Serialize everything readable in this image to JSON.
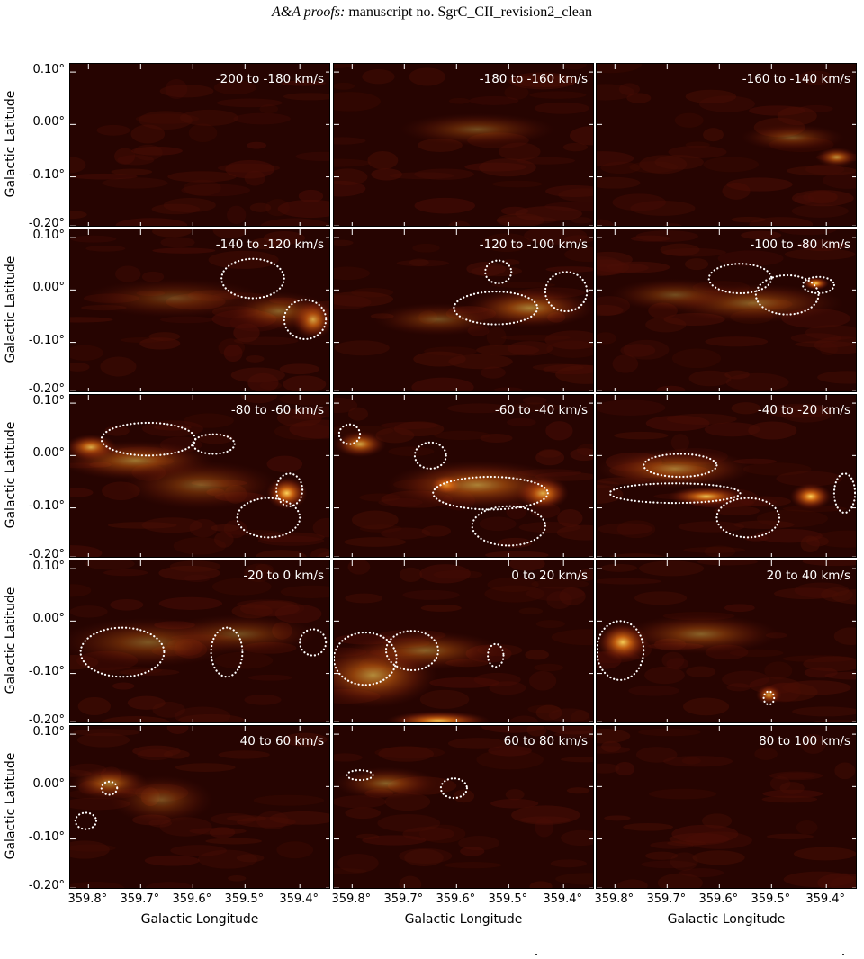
{
  "header": {
    "italic": "A&A proofs:",
    "text": " manuscript no. SgrC_CII_revision2_clean"
  },
  "axes": {
    "ylabel": "Galactic Latitude",
    "xlabel": "Galactic Longitude",
    "yticks": [
      "0.10°",
      "0.00°",
      "-0.10°",
      "-0.20°"
    ],
    "xticks": [
      "359.8°",
      "359.7°",
      "359.6°",
      "359.5°",
      "359.4°"
    ]
  },
  "colors": {
    "background": "#260401",
    "emission_low": "#4a0e05",
    "emission_mid": "#8c2a0a",
    "emission_high": "#d86a12",
    "emission_peak": "#ffd45a",
    "contour": "#ffffff"
  },
  "panels": [
    {
      "label": "-200 to -180 km/s",
      "blobs": [],
      "contours": []
    },
    {
      "label": "-180 to -160 km/s",
      "blobs": [
        [
          0.55,
          0.4,
          0.3,
          0.1,
          0.35
        ]
      ],
      "contours": []
    },
    {
      "label": "-160 to -140 km/s",
      "blobs": [
        [
          0.92,
          0.57,
          0.08,
          0.06,
          0.7
        ],
        [
          0.75,
          0.45,
          0.2,
          0.08,
          0.35
        ]
      ],
      "contours": []
    },
    {
      "label": "-140 to -120 km/s",
      "blobs": [
        [
          0.93,
          0.55,
          0.08,
          0.12,
          0.9
        ],
        [
          0.8,
          0.5,
          0.2,
          0.12,
          0.45
        ],
        [
          0.4,
          0.42,
          0.35,
          0.12,
          0.3
        ]
      ],
      "contours": [
        [
          0.7,
          0.3,
          0.12,
          0.12
        ],
        [
          0.9,
          0.55,
          0.08,
          0.12
        ]
      ]
    },
    {
      "label": "-120 to -100 km/s",
      "blobs": [
        [
          0.75,
          0.48,
          0.25,
          0.12,
          0.6
        ],
        [
          0.4,
          0.55,
          0.25,
          0.1,
          0.35
        ]
      ],
      "contours": [
        [
          0.62,
          0.48,
          0.16,
          0.1
        ],
        [
          0.89,
          0.38,
          0.08,
          0.12
        ],
        [
          0.63,
          0.26,
          0.05,
          0.07
        ]
      ]
    },
    {
      "label": "-100 to -80 km/s",
      "blobs": [
        [
          0.84,
          0.33,
          0.05,
          0.04,
          1.0
        ],
        [
          0.6,
          0.45,
          0.35,
          0.12,
          0.45
        ],
        [
          0.3,
          0.4,
          0.25,
          0.1,
          0.35
        ]
      ],
      "contours": [
        [
          0.55,
          0.3,
          0.12,
          0.09
        ],
        [
          0.73,
          0.4,
          0.12,
          0.12
        ],
        [
          0.85,
          0.34,
          0.06,
          0.05
        ]
      ]
    },
    {
      "label": "-80 to -60 km/s",
      "blobs": [
        [
          0.83,
          0.6,
          0.08,
          0.1,
          1.0
        ],
        [
          0.08,
          0.32,
          0.1,
          0.08,
          0.9
        ],
        [
          0.25,
          0.4,
          0.3,
          0.12,
          0.55
        ],
        [
          0.5,
          0.55,
          0.3,
          0.15,
          0.4
        ]
      ],
      "contours": [
        [
          0.3,
          0.27,
          0.18,
          0.1
        ],
        [
          0.55,
          0.3,
          0.08,
          0.06
        ],
        [
          0.76,
          0.75,
          0.12,
          0.12
        ],
        [
          0.84,
          0.58,
          0.05,
          0.1
        ]
      ]
    },
    {
      "label": "-60 to -40 km/s",
      "blobs": [
        [
          0.8,
          0.6,
          0.1,
          0.1,
          1.0
        ],
        [
          0.43,
          0.55,
          0.06,
          0.06,
          0.95
        ],
        [
          0.55,
          0.55,
          0.35,
          0.15,
          0.6
        ],
        [
          0.1,
          0.3,
          0.1,
          0.08,
          0.8
        ]
      ],
      "contours": [
        [
          0.37,
          0.37,
          0.06,
          0.08
        ],
        [
          0.6,
          0.6,
          0.22,
          0.1
        ],
        [
          0.67,
          0.8,
          0.14,
          0.12
        ],
        [
          0.06,
          0.24,
          0.04,
          0.06
        ]
      ]
    },
    {
      "label": "-40 to -20 km/s",
      "blobs": [
        [
          0.82,
          0.62,
          0.08,
          0.08,
          1.0
        ],
        [
          0.42,
          0.62,
          0.15,
          0.06,
          0.9
        ],
        [
          0.3,
          0.45,
          0.3,
          0.12,
          0.55
        ]
      ],
      "contours": [
        [
          0.3,
          0.6,
          0.25,
          0.06
        ],
        [
          0.32,
          0.43,
          0.14,
          0.07
        ],
        [
          0.58,
          0.75,
          0.12,
          0.12
        ],
        [
          0.95,
          0.6,
          0.04,
          0.12
        ]
      ]
    },
    {
      "label": "-20 to 0 km/s",
      "blobs": [
        [
          0.3,
          0.5,
          0.35,
          0.15,
          0.4
        ],
        [
          0.65,
          0.45,
          0.3,
          0.12,
          0.35
        ]
      ],
      "contours": [
        [
          0.2,
          0.56,
          0.16,
          0.15
        ],
        [
          0.6,
          0.56,
          0.06,
          0.15
        ],
        [
          0.93,
          0.5,
          0.05,
          0.08
        ]
      ]
    },
    {
      "label": "0 to 20 km/s",
      "blobs": [
        [
          0.4,
          0.98,
          0.2,
          0.06,
          0.95
        ],
        [
          0.15,
          0.7,
          0.25,
          0.2,
          0.65
        ],
        [
          0.35,
          0.55,
          0.3,
          0.12,
          0.45
        ]
      ],
      "contours": [
        [
          0.12,
          0.6,
          0.12,
          0.16
        ],
        [
          0.3,
          0.55,
          0.1,
          0.12
        ],
        [
          0.62,
          0.58,
          0.03,
          0.07
        ]
      ]
    },
    {
      "label": "20 to 40 km/s",
      "blobs": [
        [
          0.1,
          0.5,
          0.1,
          0.12,
          0.95
        ],
        [
          0.4,
          0.45,
          0.3,
          0.12,
          0.45
        ],
        [
          0.66,
          0.82,
          0.05,
          0.06,
          0.8
        ]
      ],
      "contours": [
        [
          0.09,
          0.55,
          0.09,
          0.18
        ],
        [
          0.66,
          0.84,
          0.02,
          0.04
        ]
      ]
    },
    {
      "label": "40 to 60 km/s",
      "blobs": [
        [
          0.15,
          0.35,
          0.15,
          0.1,
          0.6
        ],
        [
          0.35,
          0.45,
          0.2,
          0.15,
          0.35
        ]
      ],
      "contours": [
        [
          0.15,
          0.38,
          0.03,
          0.04
        ],
        [
          0.06,
          0.58,
          0.04,
          0.05
        ]
      ]
    },
    {
      "label": "60 to 80 km/s",
      "blobs": [
        [
          0.2,
          0.35,
          0.2,
          0.1,
          0.45
        ]
      ],
      "contours": [
        [
          0.1,
          0.3,
          0.05,
          0.03
        ],
        [
          0.46,
          0.38,
          0.05,
          0.06
        ]
      ]
    },
    {
      "label": "80 to 100 km/s",
      "blobs": [],
      "contours": []
    }
  ]
}
